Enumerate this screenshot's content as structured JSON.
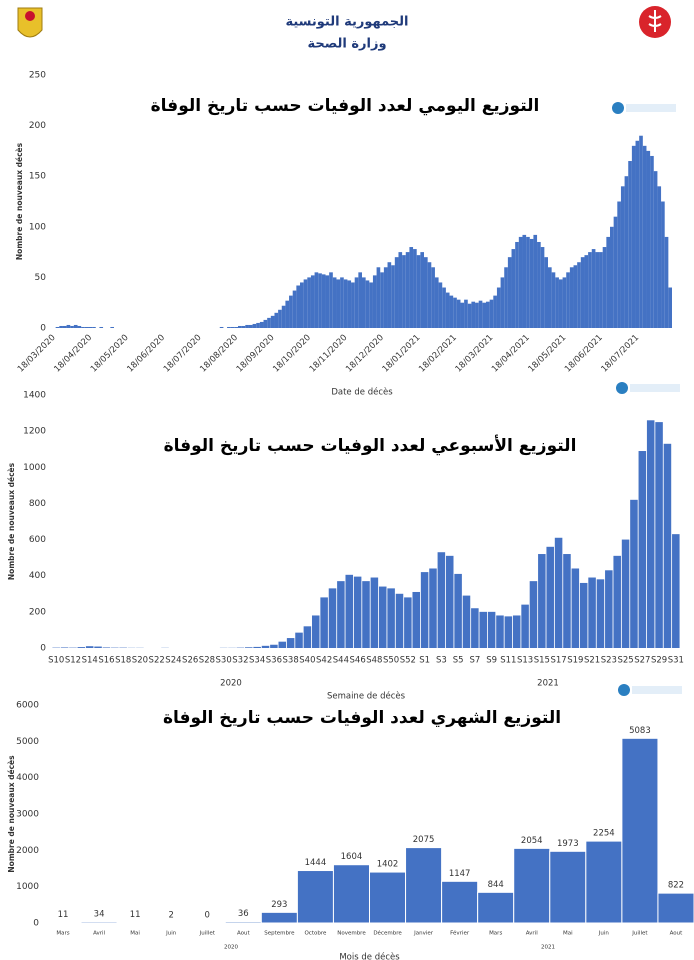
{
  "header": {
    "line1": "الجمهورية التونسية",
    "line2": "وزارة الصحة"
  },
  "chart_data": [
    {
      "type": "bar",
      "title": "التوزيع اليومي لعدد الوفيات حسب تاريخ الوفاة",
      "y_label": "Nombre de nouveaux décès",
      "x_label": "Date de décès",
      "color": "#4472c4",
      "grid": false,
      "ylim": [
        0,
        250
      ],
      "yticks": [
        0,
        50,
        100,
        150,
        200,
        250
      ],
      "categories": [
        "18/03/2020",
        null,
        null,
        null,
        null,
        null,
        null,
        null,
        null,
        null,
        "18/04/2020",
        null,
        null,
        null,
        null,
        null,
        null,
        null,
        null,
        null,
        "18/05/2020",
        null,
        null,
        null,
        null,
        null,
        null,
        null,
        null,
        null,
        "18/06/2020",
        null,
        null,
        null,
        null,
        null,
        null,
        null,
        null,
        null,
        "18/07/2020",
        null,
        null,
        null,
        null,
        null,
        null,
        null,
        null,
        null,
        "18/08/2020",
        null,
        null,
        null,
        null,
        null,
        null,
        null,
        null,
        null,
        "18/09/2020",
        null,
        null,
        null,
        null,
        null,
        null,
        null,
        null,
        null,
        "18/10/2020",
        null,
        null,
        null,
        null,
        null,
        null,
        null,
        null,
        null,
        "18/11/2020",
        null,
        null,
        null,
        null,
        null,
        null,
        null,
        null,
        null,
        "18/12/2020",
        null,
        null,
        null,
        null,
        null,
        null,
        null,
        null,
        null,
        "18/01/2021",
        null,
        null,
        null,
        null,
        null,
        null,
        null,
        null,
        null,
        "18/02/2021",
        null,
        null,
        null,
        null,
        null,
        null,
        null,
        null,
        null,
        "18/03/2021",
        null,
        null,
        null,
        null,
        null,
        null,
        null,
        null,
        null,
        "18/04/2021",
        null,
        null,
        null,
        null,
        null,
        null,
        null,
        null,
        null,
        "18/05/2021",
        null,
        null,
        null,
        null,
        null,
        null,
        null,
        null,
        null,
        "18/06/2021",
        null,
        null,
        null,
        null,
        null,
        null,
        null,
        null,
        null,
        "18/07/2021",
        null,
        null,
        null,
        null,
        null,
        null,
        null,
        null,
        null
      ],
      "values": [
        0,
        1,
        2,
        2,
        3,
        2,
        3,
        2,
        1,
        1,
        1,
        1,
        0,
        1,
        0,
        0,
        1,
        0,
        0,
        0,
        0,
        0,
        0,
        0,
        0,
        0,
        0,
        0,
        0,
        0,
        0,
        0,
        0,
        0,
        0,
        0,
        0,
        0,
        0,
        0,
        0,
        0,
        0,
        0,
        0,
        0,
        1,
        0,
        1,
        1,
        1,
        2,
        2,
        3,
        3,
        4,
        5,
        6,
        8,
        10,
        12,
        15,
        18,
        22,
        27,
        32,
        37,
        42,
        45,
        48,
        50,
        52,
        55,
        54,
        53,
        52,
        55,
        50,
        48,
        50,
        48,
        47,
        45,
        50,
        55,
        50,
        47,
        45,
        52,
        60,
        55,
        60,
        65,
        62,
        70,
        75,
        72,
        75,
        80,
        78,
        72,
        75,
        70,
        65,
        60,
        50,
        45,
        40,
        35,
        32,
        30,
        28,
        25,
        28,
        24,
        26,
        25,
        27,
        25,
        26,
        28,
        32,
        40,
        50,
        60,
        70,
        78,
        85,
        90,
        92,
        90,
        88,
        92,
        85,
        80,
        70,
        60,
        55,
        50,
        48,
        50,
        55,
        60,
        62,
        65,
        70,
        72,
        75,
        78,
        75,
        75,
        80,
        90,
        100,
        110,
        125,
        140,
        150,
        165,
        180,
        185,
        190,
        180,
        175,
        170,
        155,
        140,
        125,
        90,
        40
      ]
    },
    {
      "type": "bar",
      "title": "التوزيع الأسبوعي لعدد الوفيات حسب تاريخ الوفاة",
      "y_label": "Nombre de nouveaux décès",
      "x_label": "Semaine de décès",
      "color": "#4472c4",
      "grid": false,
      "ylim": [
        0,
        1400
      ],
      "yticks": [
        0,
        200,
        400,
        600,
        800,
        1000,
        1200,
        1400
      ],
      "x_groups": [
        "2020",
        "2021"
      ],
      "categories": [
        "S10",
        null,
        "S12",
        null,
        "S14",
        null,
        "S16",
        null,
        "S18",
        null,
        "S20",
        null,
        "S22",
        null,
        "S24",
        null,
        "S26",
        null,
        "S28",
        null,
        "S30",
        null,
        "S32",
        null,
        "S34",
        null,
        "S36",
        null,
        "S38",
        null,
        "S40",
        null,
        "S42",
        null,
        "S44",
        null,
        "S46",
        null,
        "S48",
        null,
        "S50",
        null,
        "S52",
        null,
        "S1",
        null,
        "S3",
        null,
        "S5",
        null,
        "S7",
        null,
        "S9",
        null,
        "S11",
        null,
        "S13",
        null,
        "S15",
        null,
        "S17",
        null,
        "S19",
        null,
        "S21",
        null,
        "S23",
        null,
        "S25",
        null,
        "S27",
        null,
        "S29",
        null,
        "S31"
      ],
      "values": [
        2,
        3,
        2,
        5,
        10,
        8,
        3,
        2,
        2,
        1,
        1,
        0,
        0,
        1,
        0,
        0,
        0,
        0,
        0,
        0,
        1,
        1,
        2,
        4,
        6,
        12,
        18,
        35,
        55,
        85,
        120,
        180,
        280,
        330,
        370,
        405,
        395,
        370,
        390,
        340,
        330,
        300,
        280,
        310,
        420,
        440,
        530,
        510,
        410,
        290,
        220,
        200,
        200,
        180,
        175,
        180,
        240,
        370,
        520,
        560,
        610,
        520,
        440,
        360,
        390,
        380,
        430,
        510,
        600,
        820,
        1090,
        1260,
        1250,
        1130,
        630
      ]
    },
    {
      "type": "bar",
      "title": "التوزيع الشهري لعدد الوفيات حسب تاريخ الوفاة",
      "y_label": "Nombre de nouveaux décès",
      "x_label": "Mois de décès",
      "color": "#4472c4",
      "grid": false,
      "ylim": [
        0,
        6000
      ],
      "yticks": [
        0,
        1000,
        2000,
        3000,
        4000,
        5000,
        6000
      ],
      "x_groups": [
        "2020",
        "2021"
      ],
      "categories": [
        "Mars",
        "Avril",
        "Mai",
        "Juin",
        "Juillet",
        "Aout",
        "Septembre",
        "Octobre",
        "Novembre",
        "Décembre",
        "Janvier",
        "Février",
        "Mars",
        "Avril",
        "Mai",
        "Juin",
        "Juillet",
        "Aout"
      ],
      "values": [
        11,
        34,
        11,
        2,
        0,
        36,
        293,
        1444,
        1604,
        1402,
        2075,
        1147,
        844,
        2054,
        1973,
        2254,
        5083,
        822
      ]
    }
  ]
}
